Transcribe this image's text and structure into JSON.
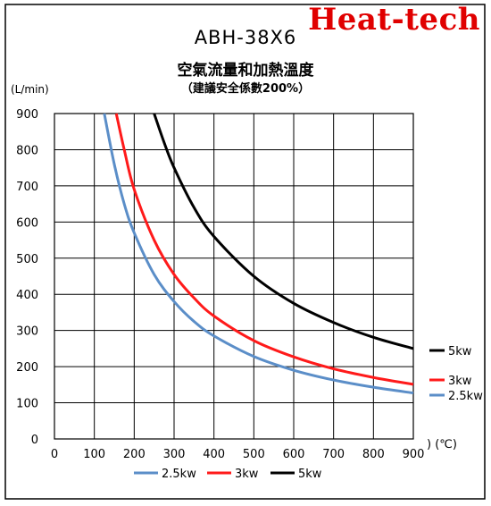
{
  "brand": "Heat-tech",
  "chart_data": {
    "type": "line",
    "title": "ABH-38X6",
    "subtitle": "空氣流量和加熱溫度",
    "note": "（建議安全係數200%）",
    "ylabel": "(L/min)",
    "xlabel": ") (℃)",
    "xlim": [
      0,
      900
    ],
    "ylim": [
      0,
      900
    ],
    "xticks": [
      0,
      100,
      200,
      300,
      400,
      500,
      600,
      700,
      800,
      900
    ],
    "yticks": [
      0,
      100,
      200,
      300,
      400,
      500,
      600,
      700,
      800,
      900
    ],
    "grid": true,
    "legend_position": "bottom",
    "series": [
      {
        "name": "2.5kw",
        "color": "#5b8ec8",
        "x": [
          125,
          150,
          175,
          200,
          250,
          300,
          350,
          400,
          500,
          600,
          700,
          800,
          900
        ],
        "y": [
          900,
          760,
          650,
          570,
          455,
          380,
          325,
          285,
          228,
          190,
          163,
          143,
          127
        ]
      },
      {
        "name": "3kw",
        "color": "#ff1a1a",
        "x": [
          155,
          175,
          200,
          250,
          300,
          350,
          400,
          500,
          600,
          700,
          800,
          900
        ],
        "y": [
          900,
          800,
          690,
          550,
          455,
          390,
          340,
          272,
          227,
          194,
          170,
          151
        ]
      },
      {
        "name": "5kw",
        "color": "#000000",
        "x": [
          250,
          275,
          300,
          350,
          400,
          500,
          600,
          700,
          800,
          900
        ],
        "y": [
          900,
          820,
          750,
          640,
          560,
          450,
          375,
          322,
          281,
          250
        ]
      }
    ]
  }
}
